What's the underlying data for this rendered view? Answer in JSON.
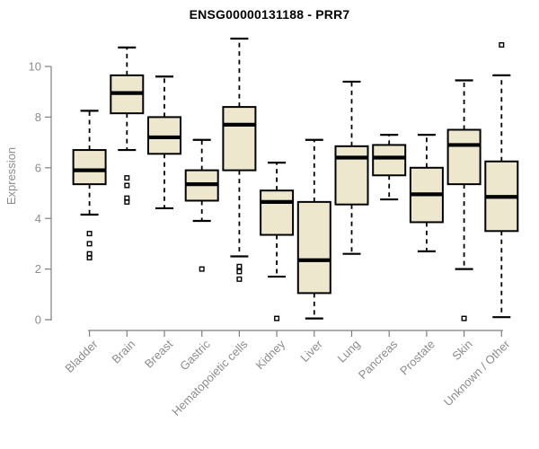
{
  "chart_data": {
    "type": "boxplot",
    "title": "ENSG00000131188 - PRR7",
    "xlabel": "",
    "ylabel": "Expression",
    "ylim": [
      0,
      10
    ],
    "yticks": [
      0,
      2,
      4,
      6,
      8,
      10
    ],
    "grid": false,
    "legend": "none",
    "colors": {
      "box_fill": "#EDE7CE",
      "box_stroke": "#000000",
      "median": "#000000",
      "whisker": "#000000",
      "axis_line": "#7f7f7f",
      "tick_label": "#8c8c8c",
      "title_text": "#000000",
      "background": "#ffffff"
    },
    "categories": [
      "Bladder",
      "Brain",
      "Breast",
      "Gastric",
      "Hematopoietic cells",
      "Kidney",
      "Liver",
      "Lung",
      "Pancreas",
      "Prostate",
      "Skin",
      "Unknown / Other"
    ],
    "series": [
      {
        "name": "Bladder",
        "whisker_low": 4.15,
        "q1": 5.35,
        "median": 5.9,
        "q3": 6.7,
        "whisker_high": 8.25,
        "outliers": [
          3.4,
          3.0,
          2.6,
          2.45
        ]
      },
      {
        "name": "Brain",
        "whisker_low": 6.7,
        "q1": 8.15,
        "median": 8.95,
        "q3": 9.65,
        "whisker_high": 10.75,
        "outliers": [
          5.6,
          5.3,
          4.8,
          4.65
        ]
      },
      {
        "name": "Breast",
        "whisker_low": 4.4,
        "q1": 6.55,
        "median": 7.2,
        "q3": 8.0,
        "whisker_high": 9.6,
        "outliers": []
      },
      {
        "name": "Gastric",
        "whisker_low": 3.9,
        "q1": 4.7,
        "median": 5.35,
        "q3": 5.9,
        "whisker_high": 7.1,
        "outliers": [
          2.0
        ]
      },
      {
        "name": "Hematopoietic cells",
        "whisker_low": 2.5,
        "q1": 5.9,
        "median": 7.7,
        "q3": 8.4,
        "whisker_high": 11.1,
        "outliers": [
          2.1,
          1.9,
          1.6
        ]
      },
      {
        "name": "Kidney",
        "whisker_low": 1.7,
        "q1": 3.35,
        "median": 4.65,
        "q3": 5.1,
        "whisker_high": 6.2,
        "outliers": [
          0.05
        ]
      },
      {
        "name": "Liver",
        "whisker_low": 0.05,
        "q1": 1.05,
        "median": 2.35,
        "q3": 4.65,
        "whisker_high": 7.1,
        "outliers": []
      },
      {
        "name": "Lung",
        "whisker_low": 2.6,
        "q1": 4.55,
        "median": 6.4,
        "q3": 6.85,
        "whisker_high": 9.4,
        "outliers": []
      },
      {
        "name": "Pancreas",
        "whisker_low": 4.75,
        "q1": 5.7,
        "median": 6.4,
        "q3": 6.9,
        "whisker_high": 7.3,
        "outliers": []
      },
      {
        "name": "Prostate",
        "whisker_low": 2.7,
        "q1": 3.85,
        "median": 4.95,
        "q3": 6.0,
        "whisker_high": 7.3,
        "outliers": []
      },
      {
        "name": "Skin",
        "whisker_low": 2.0,
        "q1": 5.35,
        "median": 6.9,
        "q3": 7.5,
        "whisker_high": 9.45,
        "outliers": [
          0.05
        ]
      },
      {
        "name": "Unknown / Other",
        "whisker_low": 0.1,
        "q1": 3.5,
        "median": 4.85,
        "q3": 6.25,
        "whisker_high": 9.65,
        "outliers": [
          10.85
        ]
      }
    ]
  }
}
